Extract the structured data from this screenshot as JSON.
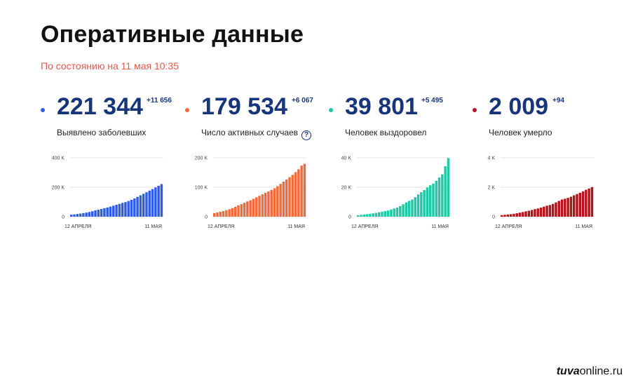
{
  "header": {
    "title": "Оперативные данные",
    "subtitle": "По состоянию на 11 мая 10:35"
  },
  "stats": [
    {
      "value": "221 344",
      "delta": "+11 656",
      "label": "Выявлено заболевших",
      "color": "#2f5ce6",
      "help": false
    },
    {
      "value": "179 534",
      "delta": "+6 067",
      "label": "Число активных случаев",
      "color": "#f26a3c",
      "help": true,
      "help_icon": "?"
    },
    {
      "value": "39 801",
      "delta": "+5 495",
      "label": "Человек выздоровел",
      "color": "#1fc8a6",
      "help": false
    },
    {
      "value": "2 009",
      "delta": "+94",
      "label": "Человек умерло",
      "color": "#b5121b",
      "help": false
    }
  ],
  "chart_data": [
    {
      "type": "bar",
      "series": [
        {
          "values": [
            13584,
            15770,
            18328,
            21102,
            24490,
            27938,
            32008,
            36793,
            42853,
            47121,
            52763,
            57999,
            62773,
            68622,
            74588,
            80949,
            87147,
            93558,
            99399,
            106498,
            114431,
            124054,
            134687,
            145268,
            155370,
            165929,
            177160,
            187859,
            198676,
            209688,
            221344
          ]
        }
      ],
      "x_tick_labels": [
        "12 АПРЕЛЯ",
        "11 МАЯ"
      ],
      "y_ticks": [
        "400 K",
        "200 K",
        "0"
      ],
      "ylim": [
        0,
        400000
      ],
      "grid": true,
      "color": "#2f5ce6"
    },
    {
      "type": "bar",
      "series": [
        {
          "values": [
            12413,
            14349,
            16710,
            19238,
            22288,
            25402,
            29145,
            33423,
            38863,
            42510,
            47355,
            51844,
            55741,
            60718,
            65631,
            70942,
            75942,
            81232,
            85760,
            90883,
            96510,
            103549,
            111166,
            119209,
            126586,
            134144,
            142051,
            151083,
            161139,
            173467,
            179534
          ]
        }
      ],
      "x_tick_labels": [
        "12 АПРЕЛЯ",
        "11 МАЯ"
      ],
      "y_ticks": [
        "200 K",
        "100 K",
        "0"
      ],
      "ylim": [
        0,
        200000
      ],
      "grid": true,
      "color": "#f26a3c"
    },
    {
      "type": "bar",
      "series": [
        {
          "values": [
            1045,
            1291,
            1470,
            1694,
            1986,
            2304,
            2590,
            3057,
            3446,
            3804,
            4190,
            4891,
            5568,
            6250,
            7212,
            8456,
            9682,
            10764,
            11619,
            13220,
            15131,
            16639,
            18059,
            19865,
            21327,
            22500,
            24385,
            26608,
            28762,
            34306,
            39801
          ]
        }
      ],
      "x_tick_labels": [
        "12 АПРЕЛЯ",
        "11 МАЯ"
      ],
      "y_ticks": [
        "40 K",
        "20 K",
        "0"
      ],
      "ylim": [
        0,
        40000
      ],
      "grid": true,
      "color": "#1fc8a6"
    },
    {
      "type": "bar",
      "series": [
        {
          "values": [
            106,
            130,
            148,
            170,
            198,
            232,
            273,
            313,
            361,
            405,
            456,
            513,
            555,
            615,
            681,
            747,
            794,
            867,
            972,
            1073,
            1169,
            1222,
            1280,
            1356,
            1451,
            1537,
            1625,
            1723,
            1827,
            1915,
            2009
          ]
        }
      ],
      "x_tick_labels": [
        "12 АПРЕЛЯ",
        "11 МАЯ"
      ],
      "y_ticks": [
        "4 K",
        "2 K",
        "0"
      ],
      "ylim": [
        0,
        4000
      ],
      "grid": true,
      "color": "#b5121b"
    }
  ],
  "watermark": {
    "brand": "tuva",
    "rest": "online.ru"
  }
}
